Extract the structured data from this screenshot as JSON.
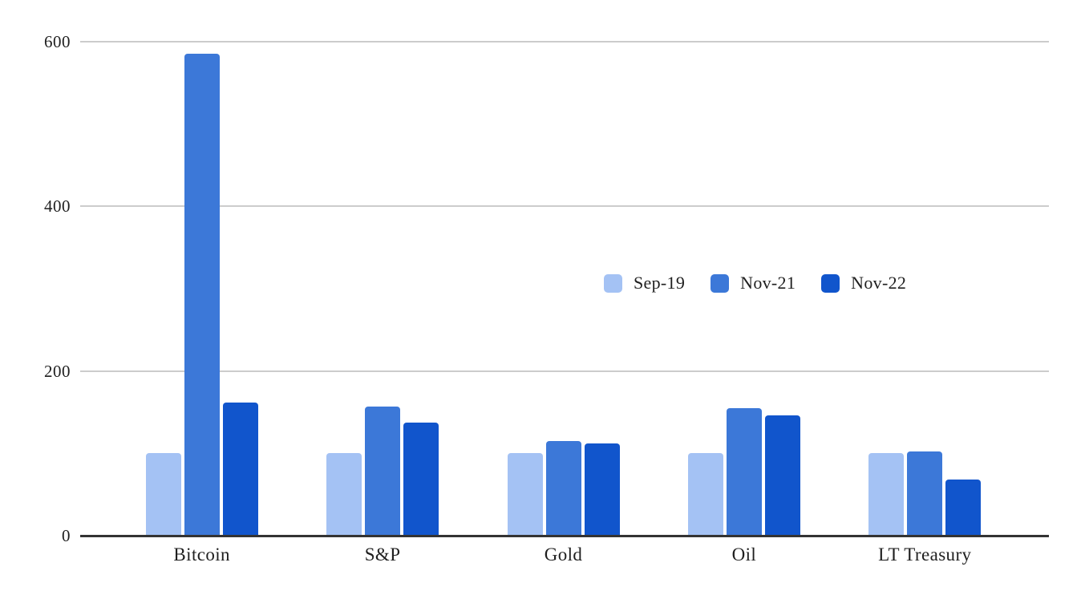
{
  "chart_data": {
    "type": "bar",
    "title": "",
    "xlabel": "",
    "ylabel": "",
    "categories": [
      "Bitcoin",
      "S&P",
      "Gold",
      "Oil",
      "LT Treasury"
    ],
    "series": [
      {
        "name": "Sep-19",
        "color": "#a4c2f4",
        "values": [
          100,
          100,
          100,
          100,
          100
        ]
      },
      {
        "name": "Nov-21",
        "color": "#3c78d8",
        "values": [
          585,
          157,
          115,
          155,
          102
        ]
      },
      {
        "name": "Nov-22",
        "color": "#1155cc",
        "values": [
          162,
          137,
          112,
          146,
          68
        ]
      }
    ],
    "ylim": [
      0,
      600
    ],
    "yticks": [
      0,
      200,
      400,
      600
    ],
    "grid": "horizontal",
    "legend_position": "middle-right"
  },
  "colors": {
    "background": "#ffffff",
    "gridline": "#cccccc",
    "axis": "#333333",
    "text": "#1f1f1f"
  }
}
